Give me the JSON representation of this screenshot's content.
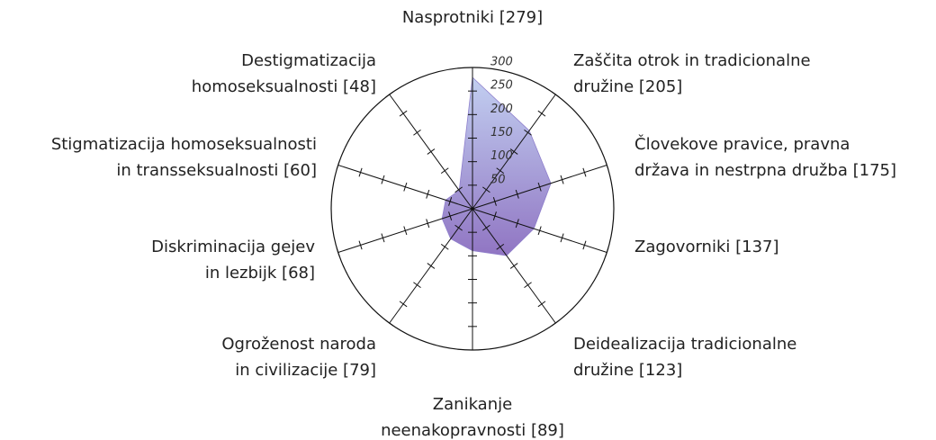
{
  "chart_data": {
    "type": "radar",
    "categories": [
      [
        "Nasprotniki [279]"
      ],
      [
        "Zaščita otrok in tradicionalne",
        "družine [205]"
      ],
      [
        "Človekove pravice, pravna",
        "država in nestrpna družba [175]"
      ],
      [
        "Zagovorniki [137]"
      ],
      [
        "Deidealizacija tradicionalne",
        "družine [123]"
      ],
      [
        "Zanikanje",
        "neenakopravnosti [89]"
      ],
      [
        "Ogroženost naroda",
        "in civilizacije [79]"
      ],
      [
        "Diskriminacija gejev",
        "in lezbijk [68]"
      ],
      [
        "Stigmatizacija homoseksualnosti",
        "in transseksualnosti [60]"
      ],
      [
        "Destigmatizacija",
        "homoseksualnosti [48]"
      ]
    ],
    "values": [
      279,
      205,
      175,
      137,
      123,
      89,
      79,
      68,
      60,
      48
    ],
    "color": "#8e7fcc",
    "ylim": [
      0,
      300
    ],
    "yticks": [
      50,
      100,
      150,
      200,
      250,
      300
    ]
  }
}
